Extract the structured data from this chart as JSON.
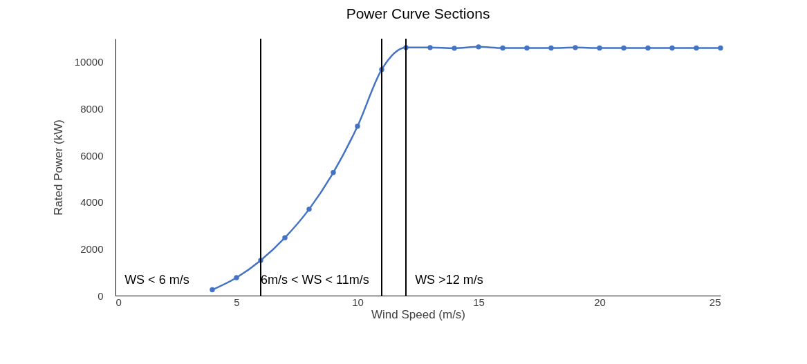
{
  "chart_data": {
    "type": "line",
    "title": "Power Curve Sections",
    "xlabel": "Wind Speed (m/s)",
    "ylabel": "Rated Power (kW)",
    "x": [
      4,
      5,
      6,
      7,
      8,
      9,
      10,
      11,
      12,
      13,
      14,
      15,
      16,
      17,
      18,
      19,
      20,
      21,
      22,
      23,
      24,
      25
    ],
    "series": [
      {
        "color": "#4472c4",
        "values": [
          250,
          770,
          1510,
          2480,
          3700,
          5270,
          7250,
          9680,
          10620,
          10620,
          10590,
          10650,
          10600,
          10600,
          10600,
          10620,
          10600,
          10600,
          10600,
          10600,
          10600,
          10600
        ]
      }
    ],
    "xlim": [
      0,
      25
    ],
    "xticks": [
      0,
      5,
      10,
      15,
      20,
      25
    ],
    "ylim": [
      0,
      11000
    ],
    "yticks": [
      0,
      2000,
      4000,
      6000,
      8000,
      10000
    ],
    "grid": false,
    "marker": "circle",
    "line_style": "solid",
    "ref_lines": [
      {
        "axis": "x",
        "value": 6,
        "color": "#000000"
      },
      {
        "axis": "x",
        "value": 11,
        "color": "#000000"
      },
      {
        "axis": "x",
        "value": 12,
        "color": "#000000"
      }
    ],
    "annotations": [
      "WS < 6 m/s",
      "6m/s < WS < 11m/s",
      "WS >12 m/s"
    ]
  }
}
